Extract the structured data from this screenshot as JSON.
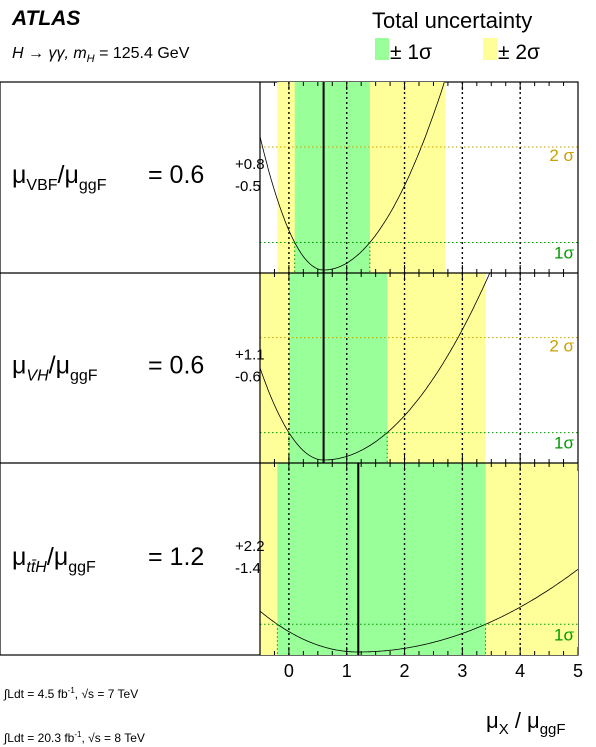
{
  "header": {
    "experiment": "ATLAS",
    "channel_pre": "H → γγ, m",
    "channel_sub": "H",
    "channel_post": " = 125.4 GeV",
    "legend_title": "Total uncertainty",
    "legend_items": [
      {
        "label": "± 1σ",
        "color": "#99ff99"
      },
      {
        "label": "± 2σ",
        "color": "#ffff99"
      }
    ]
  },
  "lumi": [
    {
      "prefix": "∫Ldt = 4.5 fb",
      "sup": "-1",
      "mid": ", √s = 7 TeV"
    },
    {
      "prefix": "∫Ldt = 20.3 fb",
      "sup": "-1",
      "mid": ", √s = 8 TeV"
    }
  ],
  "chart_data": {
    "type": "line",
    "xlabel_main": "μ",
    "xlabel_sub": "X",
    "xlabel_sep": " / μ",
    "xlabel_sub2": "ggF",
    "xlim": [
      -0.5,
      5
    ],
    "xticks": [
      0,
      1,
      2,
      3,
      4,
      5
    ],
    "xtick_labels": [
      "0",
      "1",
      "2",
      "3",
      "4",
      "5"
    ],
    "colors": {
      "one_sigma": "#99ff99",
      "two_sigma": "#ffff99",
      "label": "#c8a000",
      "one_label": "#009900"
    },
    "sigma_labels": {
      "two": "2 σ",
      "one": "1σ"
    },
    "panels": [
      {
        "name": "VBF",
        "label_mu": "μ",
        "label_num": "VBF",
        "label_den": "ggF",
        "value_text": "= 0.6",
        "err_up": "+0.8",
        "err_down": "-0.5",
        "best_fit": 0.6,
        "one_sigma": [
          0.1,
          1.4
        ],
        "two_sigma": [
          -0.2,
          2.7
        ],
        "show_two_sigma_label": true
      },
      {
        "name": "VH",
        "label_mu": "μ",
        "label_num": "VH",
        "label_den": "ggF",
        "value_text": "= 0.6",
        "err_up": "+1.1",
        "err_down": "-0.6",
        "best_fit": 0.6,
        "one_sigma": [
          0.0,
          1.7
        ],
        "two_sigma": [
          -0.5,
          3.4
        ],
        "show_two_sigma_label": true
      },
      {
        "name": "ttH",
        "label_mu": "μ",
        "label_num": "tt̄H",
        "label_den": "ggF",
        "value_text": "= 1.2",
        "err_up": "+2.2",
        "err_down": "-1.4",
        "best_fit": 1.2,
        "one_sigma": [
          -0.2,
          3.4
        ],
        "two_sigma": [
          -1.3,
          7.0
        ],
        "show_two_sigma_label": false
      }
    ]
  }
}
